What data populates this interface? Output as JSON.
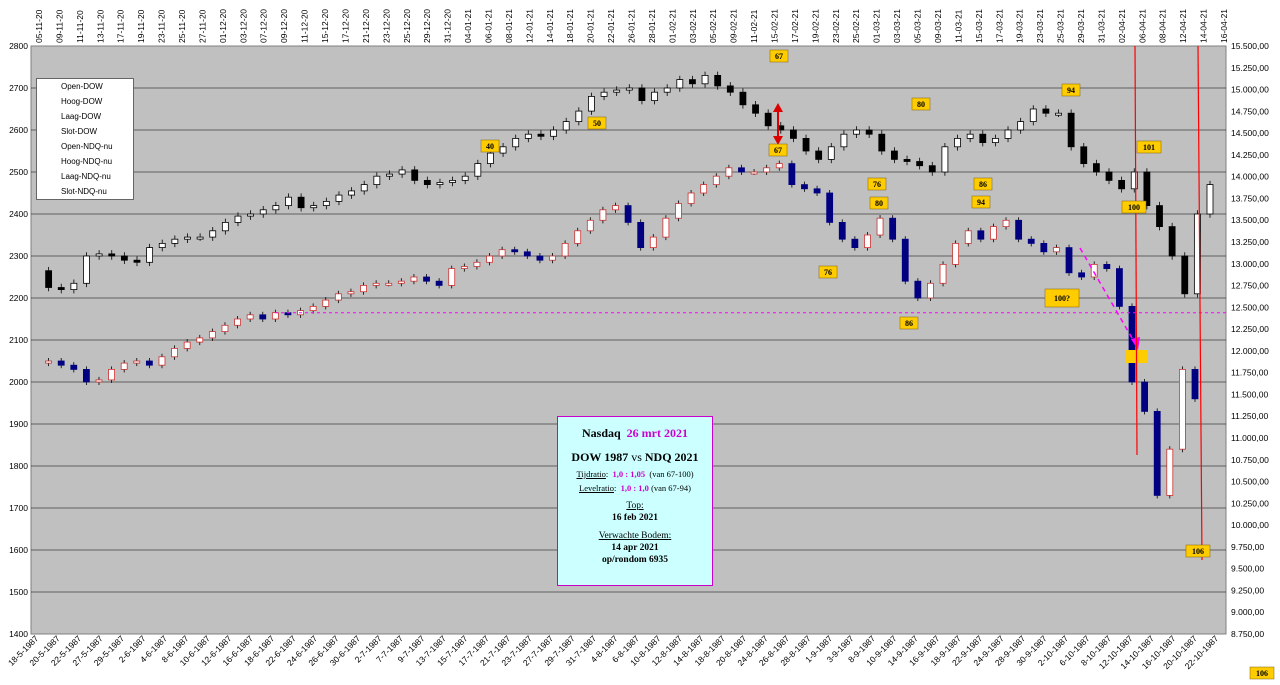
{
  "chart_data": {
    "type": "candlestick",
    "left_axis": {
      "ylim": [
        1400,
        2800
      ],
      "ticks": [
        "2800",
        "2700",
        "2600",
        "2500",
        "2400",
        "2300",
        "2200",
        "2100",
        "2000",
        "1900",
        "1800",
        "1700",
        "1600",
        "1500",
        "1400"
      ]
    },
    "right_axis": {
      "ylim": [
        8750,
        15500
      ],
      "ticks": [
        "15.500,00",
        "15.250,00",
        "15.000,00",
        "14.750,00",
        "14.500,00",
        "14.250,00",
        "14.000,00",
        "13.750,00",
        "13.500,00",
        "13.250,00",
        "13.000,00",
        "12.750,00",
        "12.500,00",
        "12.250,00",
        "12.000,00",
        "11.750,00",
        "11.500,00",
        "11.250,00",
        "11.000,00",
        "10.750,00",
        "10.500,00",
        "10.250,00",
        "10.000,00",
        "9.750,00",
        "9.500,00",
        "9.250,00",
        "9.000,00",
        "8.750,00"
      ]
    },
    "top_dates": [
      "05-11-20",
      "09-11-20",
      "11-11-20",
      "13-11-20",
      "17-11-20",
      "19-11-20",
      "23-11-20",
      "25-11-20",
      "27-11-20",
      "01-12-20",
      "03-12-20",
      "07-12-20",
      "09-12-20",
      "11-12-20",
      "15-12-20",
      "17-12-20",
      "21-12-20",
      "23-12-20",
      "25-12-20",
      "29-12-20",
      "31-12-20",
      "04-01-21",
      "06-01-21",
      "08-01-21",
      "12-01-21",
      "14-01-21",
      "18-01-21",
      "20-01-21",
      "22-01-21",
      "26-01-21",
      "28-01-21",
      "01-02-21",
      "03-02-21",
      "05-02-21",
      "09-02-21",
      "11-02-21",
      "15-02-21",
      "17-02-21",
      "19-02-21",
      "23-02-21",
      "25-02-21",
      "01-03-21",
      "03-03-21",
      "05-03-21",
      "09-03-21",
      "11-03-21",
      "15-03-21",
      "17-03-21",
      "19-03-21",
      "23-03-21",
      "25-03-21",
      "29-03-21",
      "31-03-21",
      "02-04-21",
      "06-04-21",
      "08-04-21",
      "12-04-21",
      "14-04-21",
      "16-04-21"
    ],
    "bottom_dates": [
      "18-5-1987",
      "20-5-1987",
      "22-5-1987",
      "27-5-1987",
      "29-5-1987",
      "2-6-1987",
      "4-6-1987",
      "8-6-1987",
      "10-6-1987",
      "12-6-1987",
      "16-6-1987",
      "18-6-1987",
      "22-6-1987",
      "24-6-1987",
      "26-6-1987",
      "30-6-1987",
      "2-7-1987",
      "7-7-1987",
      "9-7-1987",
      "13-7-1987",
      "15-7-1987",
      "17-7-1987",
      "21-7-1987",
      "23-7-1987",
      "27-7-1987",
      "29-7-1987",
      "31-7-1987",
      "4-8-1987",
      "6-8-1987",
      "10-8-1987",
      "12-8-1987",
      "14-8-1987",
      "18-8-1987",
      "20-8-1987",
      "24-8-1987",
      "26-8-1987",
      "28-8-1987",
      "1-9-1987",
      "3-9-1987",
      "8-9-1987",
      "10-9-1987",
      "14-9-1987",
      "16-9-1987",
      "18-9-1987",
      "22-9-1987",
      "24-9-1987",
      "28-9-1987",
      "30-9-1987",
      "2-10-1987",
      "6-10-1987",
      "8-10-1987",
      "12-10-1987",
      "14-10-1987",
      "16-10-1987",
      "20-10-1987",
      "22-10-1987"
    ],
    "legend": [
      "Open-DOW",
      "Hoog-DOW",
      "Laag-DOW",
      "Slot-DOW",
      "Open-NDQ-nu",
      "Hoog-NDQ-nu",
      "Laag-NDQ-nu",
      "Slot-NDQ-nu"
    ],
    "ndq_series": {
      "name": "NDQ 2021",
      "close": [
        2265,
        2225,
        2220,
        2235,
        2300,
        2305,
        2300,
        2290,
        2285,
        2320,
        2330,
        2340,
        2345,
        2345,
        2360,
        2380,
        2395,
        2400,
        2410,
        2420,
        2440,
        2415,
        2420,
        2430,
        2445,
        2455,
        2470,
        2490,
        2495,
        2505,
        2480,
        2470,
        2475,
        2480,
        2490,
        2520,
        2545,
        2560,
        2580,
        2590,
        2585,
        2600,
        2620,
        2645,
        2680,
        2690,
        2695,
        2700,
        2670,
        2690,
        2700,
        2720,
        2710,
        2730,
        2705,
        2690,
        2660,
        2640,
        2610,
        2600,
        2580,
        2550,
        2530,
        2560,
        2590,
        2600,
        2590,
        2550,
        2530,
        2525,
        2515,
        2500,
        2560,
        2580,
        2590,
        2570,
        2580,
        2600,
        2620,
        2650,
        2640,
        2640,
        2560,
        2520,
        2500,
        2480,
        2460,
        2500,
        2420,
        2370,
        2300,
        2210,
        2400,
        2470
      ]
    },
    "dow_series": {
      "name": "DOW 1987",
      "close": [
        2045,
        2050,
        2040,
        2030,
        2000,
        2005,
        2030,
        2045,
        2050,
        2040,
        2060,
        2080,
        2095,
        2105,
        2120,
        2135,
        2150,
        2160,
        2150,
        2165,
        2160,
        2170,
        2180,
        2195,
        2210,
        2215,
        2230,
        2235,
        2235,
        2240,
        2250,
        2240,
        2230,
        2270,
        2275,
        2285,
        2300,
        2315,
        2310,
        2300,
        2290,
        2300,
        2330,
        2360,
        2385,
        2410,
        2420,
        2380,
        2320,
        2345,
        2390,
        2425,
        2450,
        2470,
        2490,
        2510,
        2500,
        2500,
        2510,
        2520,
        2470,
        2460,
        2450,
        2380,
        2340,
        2320,
        2350,
        2390,
        2340,
        2240,
        2200,
        2235,
        2280,
        2330,
        2360,
        2340,
        2370,
        2385,
        2340,
        2330,
        2310,
        2320,
        2260,
        2250,
        2280,
        2270,
        2180,
        2000,
        1930,
        1730,
        1840,
        2030,
        1960
      ]
    },
    "badges": [
      "40",
      "50",
      "67",
      "67",
      "76",
      "80",
      "76",
      "80",
      "86",
      "94",
      "94",
      "100?",
      "100",
      "101",
      "106",
      "106",
      "86"
    ],
    "annotations": {
      "reference_line": 2165,
      "projection_target": 2070,
      "dow_top": "67",
      "expected_bottom": "106"
    }
  },
  "info_box": {
    "title_a": "Nasdaq",
    "title_date": "26 mrt  2021",
    "subtitle": "DOW 1987",
    "subtitle_vs": "vs",
    "subtitle_b": "NDQ 2021",
    "tijd_label": "Tijdratio",
    "tijd_value": "1,0 : 1,05",
    "tijd_note": "(van 67-100)",
    "level_label": "Levelratio",
    "level_value": "1,0 : 1,0",
    "level_note": "(van 67-94)",
    "top_label": "Top",
    "top_value": "16 feb  2021",
    "bodem_label": "Verwachte Bodem",
    "bodem_value": "14 apr  2021",
    "bodem_extra": "op/rondom  6935"
  },
  "colors": {
    "plot_bg": "#c0c0c0",
    "ndq_up": "#ffffff",
    "ndq_down": "#000000",
    "dow_up": "#ffffff",
    "dow_up_edge": "#cc3333",
    "dow_down": "#000080",
    "badge": "#ffcc00",
    "magenta": "#ff00ff",
    "red": "#ff0000"
  }
}
